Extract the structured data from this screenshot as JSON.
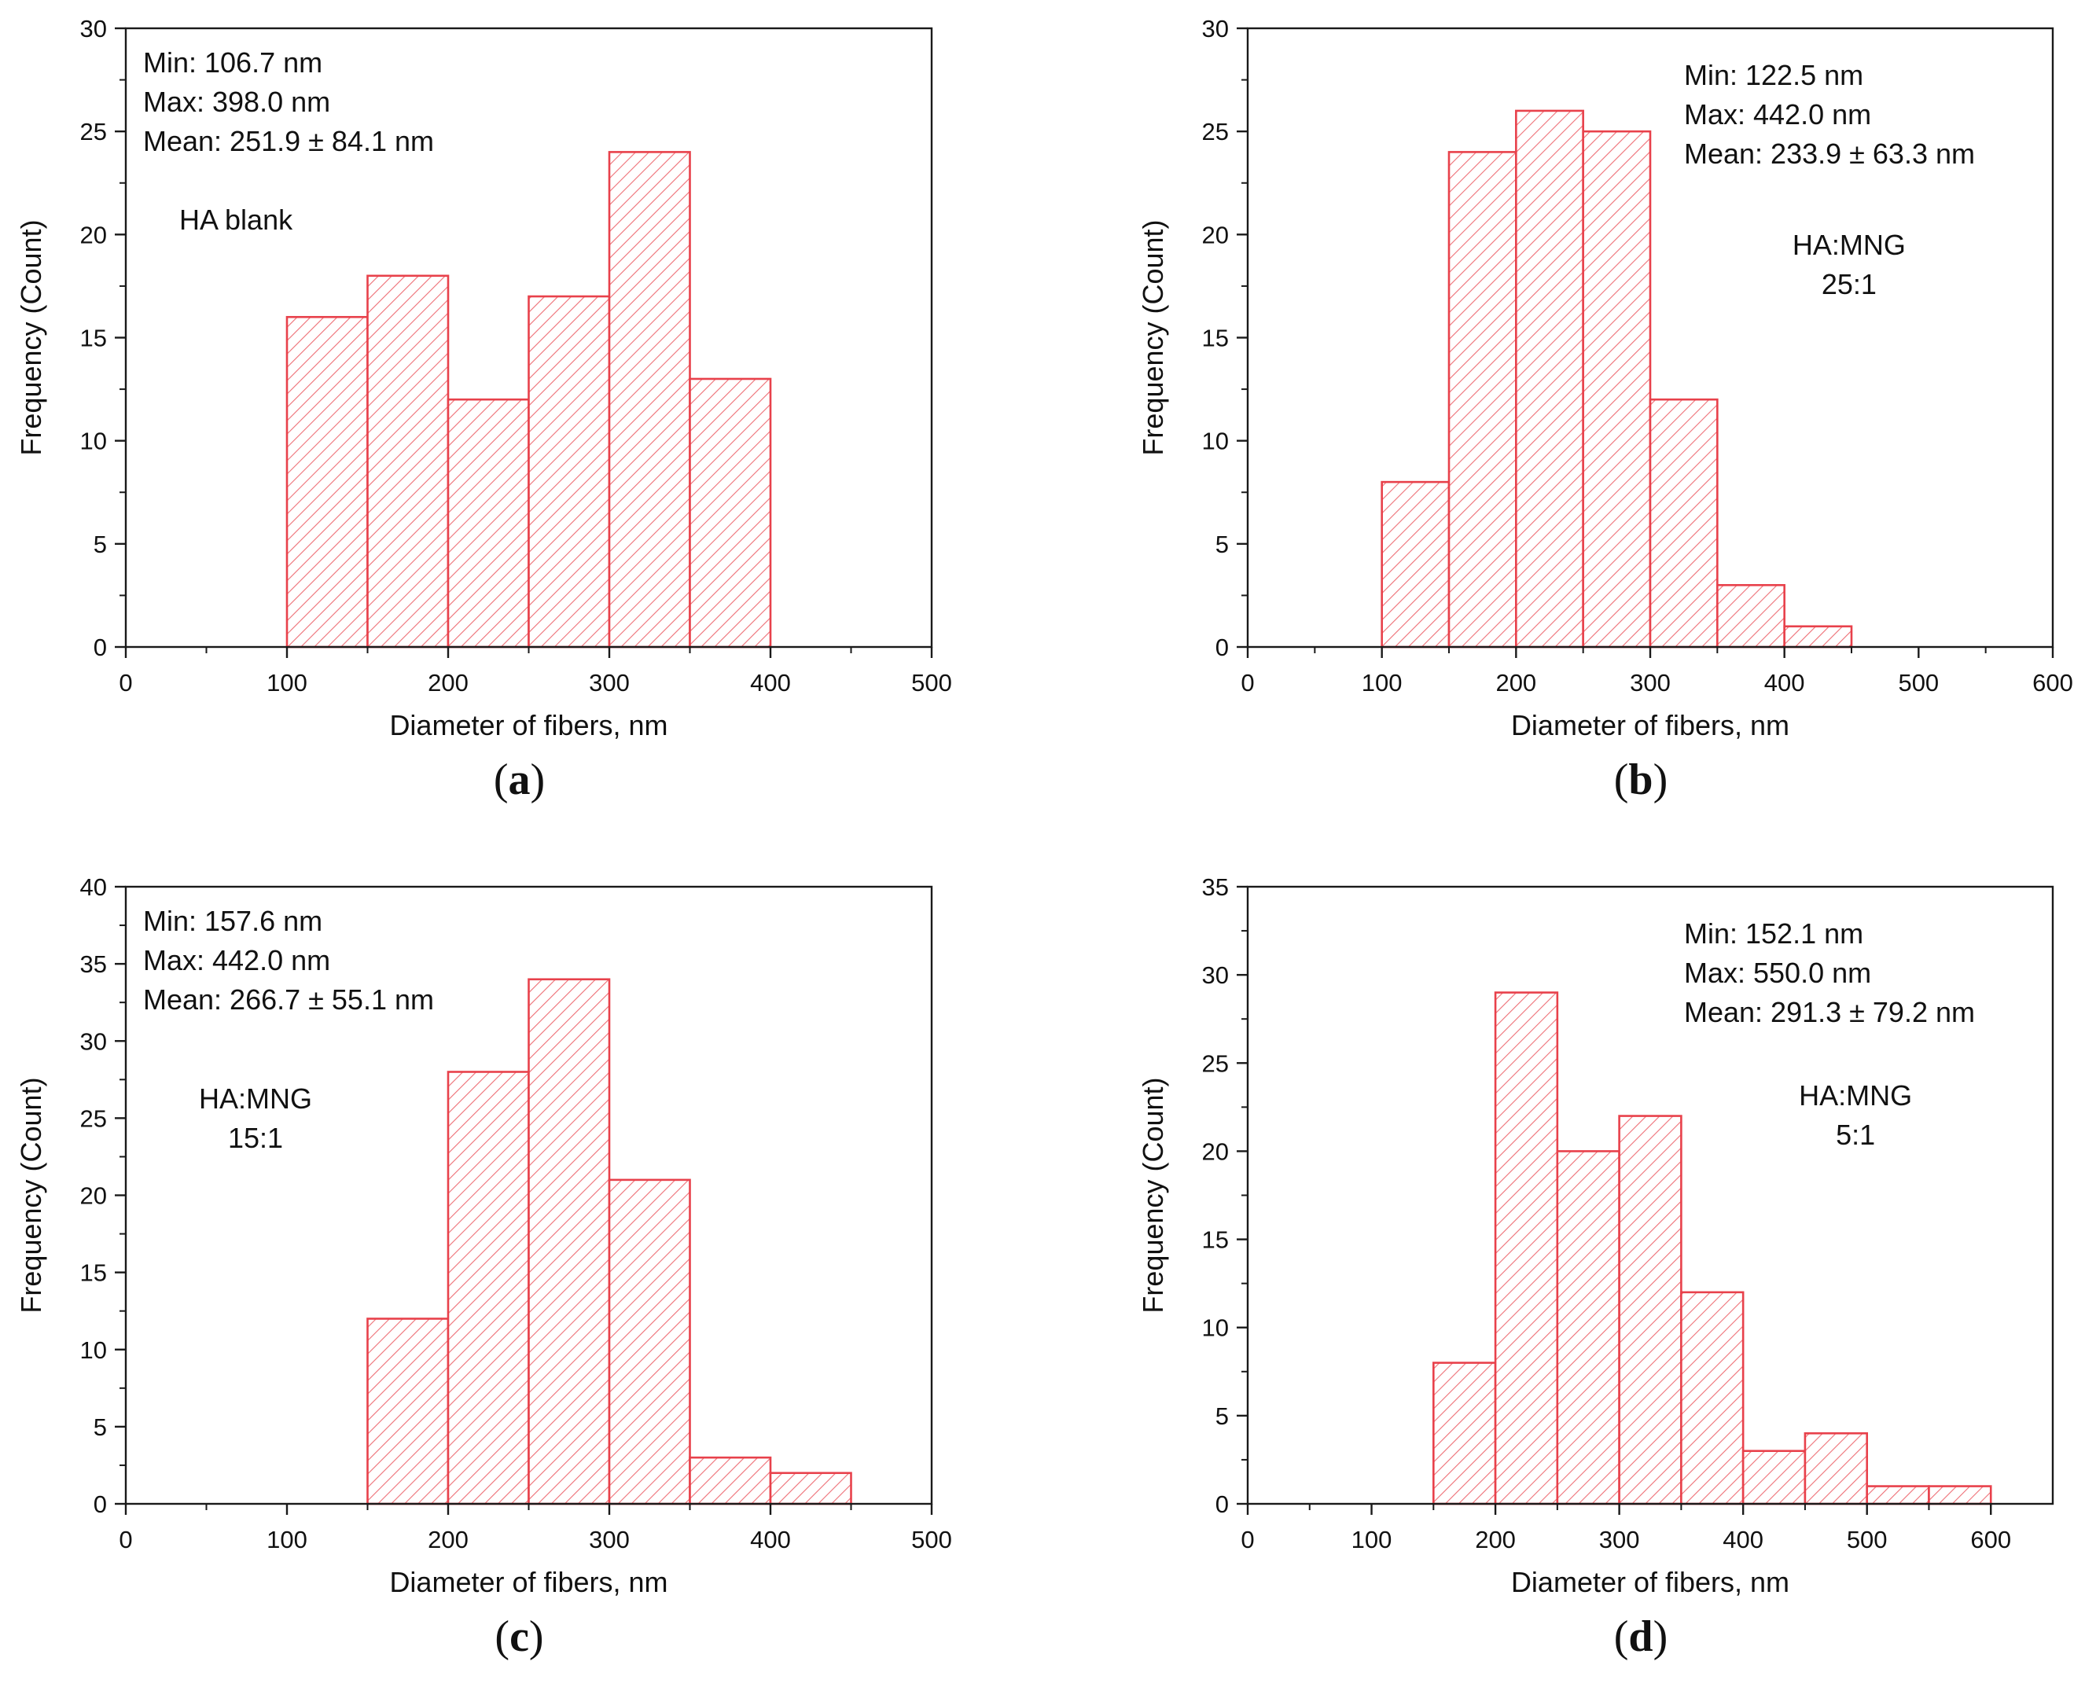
{
  "figure": {
    "colors": {
      "bar_stroke": "#e8414b",
      "hatch": "#ee6f76",
      "axis": "#1a1a1a",
      "background": "#ffffff"
    }
  },
  "chart_data": [
    {
      "type": "bar",
      "panel_label": "a",
      "title": "",
      "xlabel": "Diameter of fibers, nm",
      "ylabel": "Frequency (Count)",
      "xlim": [
        0,
        500
      ],
      "ylim": [
        0,
        30
      ],
      "xticks": [
        0,
        100,
        200,
        300,
        400,
        500
      ],
      "yticks": [
        0,
        5,
        10,
        15,
        20,
        25,
        30
      ],
      "bin_edges": [
        100,
        150,
        200,
        250,
        300,
        350,
        400
      ],
      "values": [
        16,
        18,
        12,
        17,
        24,
        13
      ],
      "stats": [
        "Min: 106.7 nm",
        "Max: 398.0 nm",
        "Mean: 251.9 ± 84.1 nm"
      ],
      "stats_anchor": "left",
      "sample": [
        "HA blank"
      ]
    },
    {
      "type": "bar",
      "panel_label": "b",
      "title": "",
      "xlabel": "Diameter of fibers, nm",
      "ylabel": "Frequency (Count)",
      "xlim": [
        0,
        600
      ],
      "ylim": [
        0,
        30
      ],
      "xticks": [
        0,
        100,
        200,
        300,
        400,
        500,
        600
      ],
      "yticks": [
        0,
        5,
        10,
        15,
        20,
        25,
        30
      ],
      "bin_edges": [
        100,
        150,
        200,
        250,
        300,
        350,
        400,
        450
      ],
      "values": [
        8,
        24,
        26,
        25,
        12,
        3,
        1
      ],
      "stats": [
        "Min: 122.5 nm",
        "Max: 442.0 nm",
        "Mean:  233.9 ± 63.3 nm"
      ],
      "stats_anchor": "right",
      "sample": [
        "HA:MNG",
        "25:1"
      ]
    },
    {
      "type": "bar",
      "panel_label": "c",
      "title": "",
      "xlabel": "Diameter of fibers, nm",
      "ylabel": "Frequency (Count)",
      "xlim": [
        0,
        500
      ],
      "ylim": [
        0,
        40
      ],
      "xticks": [
        0,
        100,
        200,
        300,
        400,
        500
      ],
      "yticks": [
        0,
        5,
        10,
        15,
        20,
        25,
        30,
        35,
        40
      ],
      "bin_edges": [
        150,
        200,
        250,
        300,
        350,
        400,
        450
      ],
      "values": [
        12,
        28,
        34,
        21,
        3,
        2
      ],
      "stats": [
        "Min: 157.6 nm",
        "Max: 442.0 nm",
        "Mean: 266.7 ± 55.1 nm"
      ],
      "stats_anchor": "left",
      "sample": [
        "HA:MNG",
        "15:1"
      ]
    },
    {
      "type": "bar",
      "panel_label": "d",
      "title": "",
      "xlabel": "Diameter of fibers, nm",
      "ylabel": "Frequency (Count)",
      "xlim": [
        0,
        650
      ],
      "ylim": [
        0,
        35
      ],
      "xticks": [
        0,
        100,
        200,
        300,
        400,
        500,
        600
      ],
      "yticks": [
        0,
        5,
        10,
        15,
        20,
        25,
        30,
        35
      ],
      "bin_edges": [
        150,
        200,
        250,
        300,
        350,
        400,
        450,
        500,
        550,
        600
      ],
      "values": [
        8,
        29,
        20,
        22,
        12,
        3,
        4,
        1,
        1
      ],
      "stats": [
        "Min: 152.1 nm",
        "Max: 550.0 nm",
        "Mean: 291.3 ± 79.2 nm"
      ],
      "stats_anchor": "right",
      "sample": [
        "HA:MNG",
        "5:1"
      ]
    }
  ]
}
